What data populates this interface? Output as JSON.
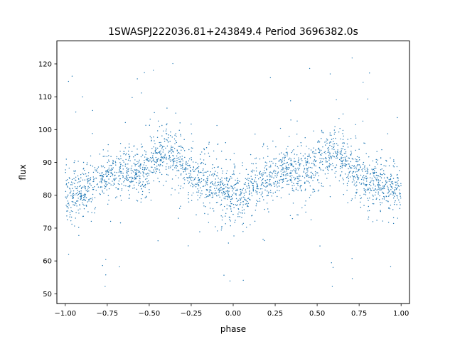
{
  "colors": {
    "marker": "#1f77b4",
    "axes": "#000000",
    "background": "#ffffff"
  },
  "chart_data": {
    "type": "scatter",
    "title": "1SWASPJ222036.81+243849.4 Period 3696382.0s",
    "xlabel": "phase",
    "ylabel": "flux",
    "xlim": [
      -1.05,
      1.05
    ],
    "ylim": [
      47,
      127
    ],
    "x_ticks": [
      -1.0,
      -0.75,
      -0.5,
      -0.25,
      0.0,
      0.25,
      0.5,
      0.75,
      1.0
    ],
    "x_tick_labels": [
      "−1.00",
      "−0.75",
      "−0.50",
      "−0.25",
      "0.00",
      "0.25",
      "0.50",
      "0.75",
      "1.00"
    ],
    "y_ticks": [
      50,
      60,
      70,
      80,
      90,
      100,
      110,
      120
    ],
    "y_tick_labels": [
      "50",
      "60",
      "70",
      "80",
      "90",
      "100",
      "110",
      "120"
    ],
    "grid": false,
    "legend": "none",
    "series": [
      {
        "marker": "dot",
        "phase_range": [
          -1.0,
          1.0
        ],
        "period_in_phase": 1.0,
        "mean_flux_profile": {
          "phase": [
            -1.0,
            -0.95,
            -0.9,
            -0.85,
            -0.8,
            -0.75,
            -0.7,
            -0.65,
            -0.6,
            -0.55,
            -0.5,
            -0.45,
            -0.4,
            -0.35,
            -0.3,
            -0.25,
            -0.2,
            -0.15,
            -0.1,
            -0.05,
            0.0,
            0.05,
            0.1,
            0.15,
            0.2,
            0.25,
            0.3,
            0.35,
            0.4,
            0.45,
            0.5,
            0.55,
            0.6,
            0.65,
            0.7,
            0.75,
            0.8,
            0.85,
            0.9,
            0.95,
            1.0
          ],
          "flux": [
            81,
            79,
            81,
            83,
            85,
            86,
            87,
            88,
            87,
            87,
            89,
            92,
            93,
            91,
            89,
            87,
            85,
            84,
            83,
            82,
            81,
            79,
            81,
            83,
            85,
            86,
            87,
            88,
            87,
            87,
            89,
            92,
            93,
            91,
            89,
            87,
            85,
            84,
            83,
            82,
            81
          ]
        },
        "typical_spread_flux": [
          70,
          100
        ],
        "outlier_flux_range": [
          51,
          122
        ]
      }
    ]
  }
}
